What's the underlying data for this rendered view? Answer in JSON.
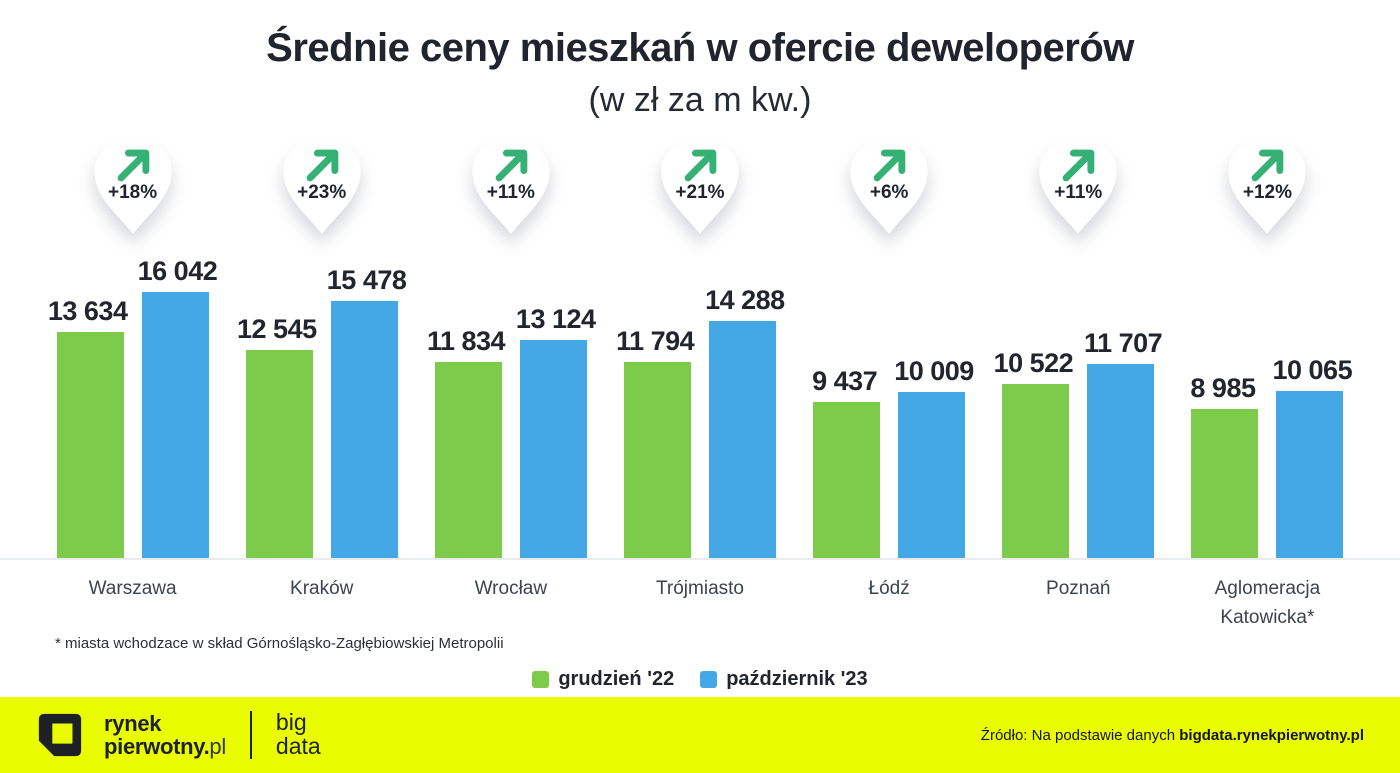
{
  "title": "Średnie ceny mieszkań w ofercie deweloperów",
  "subtitle": "(w zł za m kw.)",
  "footnote": "* miasta wchodzace w skład Górnośląsko-Zagłębiowskiej Metropolii",
  "legend": [
    {
      "label": "grudzień '22",
      "color": "#7dcb4a"
    },
    {
      "label": "październik '23",
      "color": "#45a8e6"
    }
  ],
  "chart_data": {
    "type": "bar",
    "title": "Średnie ceny mieszkań w ofercie deweloperów",
    "subtitle": "(w zł za m kw.)",
    "unit": "zł za m kw.",
    "categories": [
      "Warszawa",
      "Kraków",
      "Wrocław",
      "Trójmiasto",
      "Łódź",
      "Poznań",
      "Aglomeracja Katowicka*"
    ],
    "series": [
      {
        "name": "grudzień '22",
        "color": "#7dcb4a",
        "values": [
          13634,
          12545,
          11834,
          11794,
          9437,
          10522,
          8985
        ],
        "labels": [
          "13 634",
          "12 545",
          "11 834",
          "11 794",
          "9 437",
          "10 522",
          "8 985"
        ]
      },
      {
        "name": "październik '23",
        "color": "#45a8e6",
        "values": [
          16042,
          15478,
          13124,
          14288,
          10009,
          11707,
          10065
        ],
        "labels": [
          "16 042",
          "15 478",
          "13 124",
          "14 288",
          "10 009",
          "11 707",
          "10 065"
        ]
      }
    ],
    "change_badges": [
      "+18%",
      "+23%",
      "+11%",
      "+21%",
      "+6%",
      "+11%",
      "+12%"
    ],
    "badge_arrow_color": "#35b176",
    "ylim": [
      0,
      16042
    ],
    "grid": false,
    "legend_position": "bottom"
  },
  "footer": {
    "background": "#eafc00",
    "logo_line1": "rynek",
    "logo_line2_bold": "pierwotny.",
    "logo_line2_regular": "pl",
    "bigdata_line1": "big",
    "bigdata_line2": "data",
    "source_prefix": "Źródło: Na podstawie danych ",
    "source_bold": "bigdata.rynekpierwotny.pl"
  }
}
